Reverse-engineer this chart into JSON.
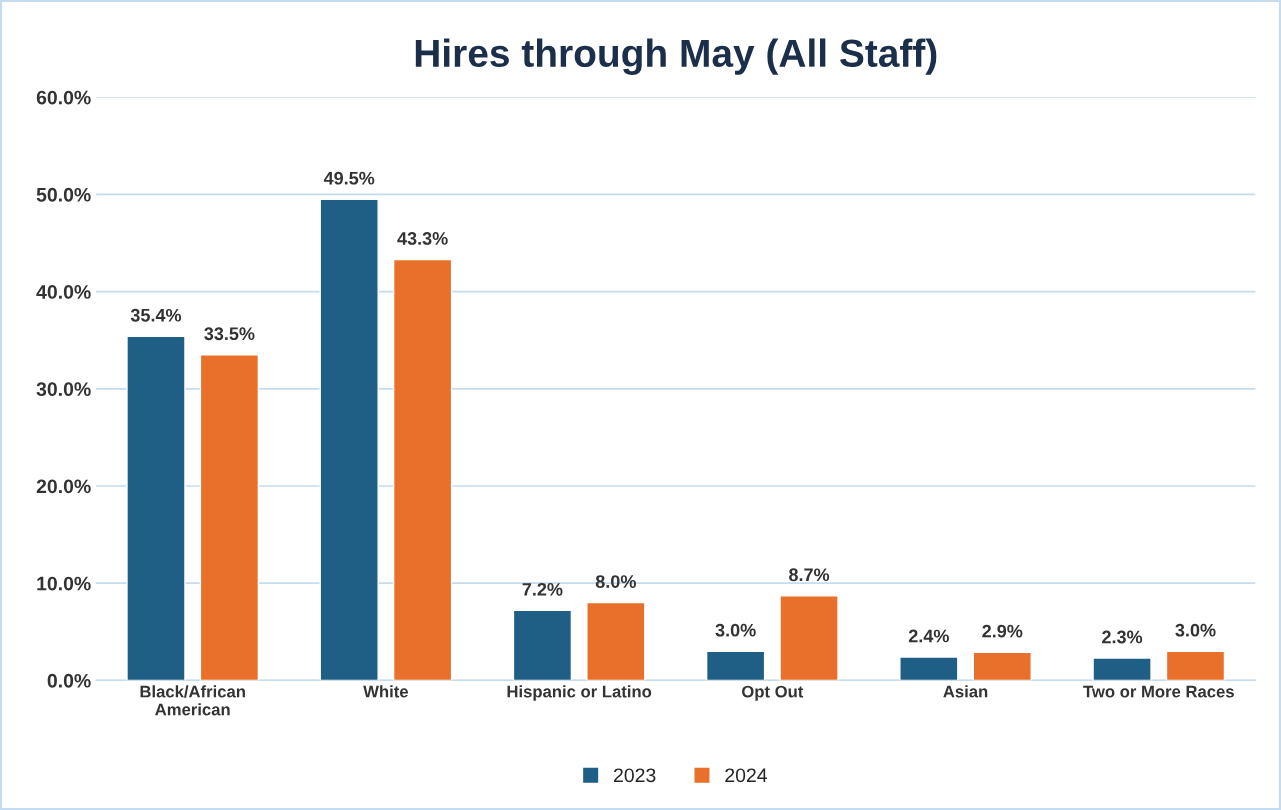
{
  "chart_data": {
    "type": "bar",
    "title": "Hires through May (All Staff)",
    "categories": [
      "Black/African\nAmerican",
      "White",
      "Hispanic or Latino",
      "Opt Out",
      "Asian",
      "Two or More Races"
    ],
    "series": [
      {
        "name": "2023",
        "color": "#1f5f86",
        "values": [
          35.4,
          49.5,
          7.2,
          3.0,
          2.4,
          2.3
        ],
        "value_labels": [
          "35.4%",
          "49.5%",
          "7.2%",
          "3.0%",
          "2.4%",
          "2.3%"
        ]
      },
      {
        "name": "2024",
        "color": "#e8702a",
        "values": [
          33.5,
          43.3,
          8.0,
          8.7,
          2.9,
          3.0
        ],
        "value_labels": [
          "33.5%",
          "43.3%",
          "8.0%",
          "8.7%",
          "2.9%",
          "3.0%"
        ]
      }
    ],
    "ylim": [
      0,
      60
    ],
    "yticks": [
      {
        "value": 0,
        "label": "0.0%"
      },
      {
        "value": 10,
        "label": "10.0%"
      },
      {
        "value": 20,
        "label": "20.0%"
      },
      {
        "value": 30,
        "label": "30.0%"
      },
      {
        "value": 40,
        "label": "40.0%"
      },
      {
        "value": 50,
        "label": "50.0%"
      },
      {
        "value": 60,
        "label": "60.0%"
      }
    ],
    "grid": "y",
    "legend": "bottom"
  }
}
